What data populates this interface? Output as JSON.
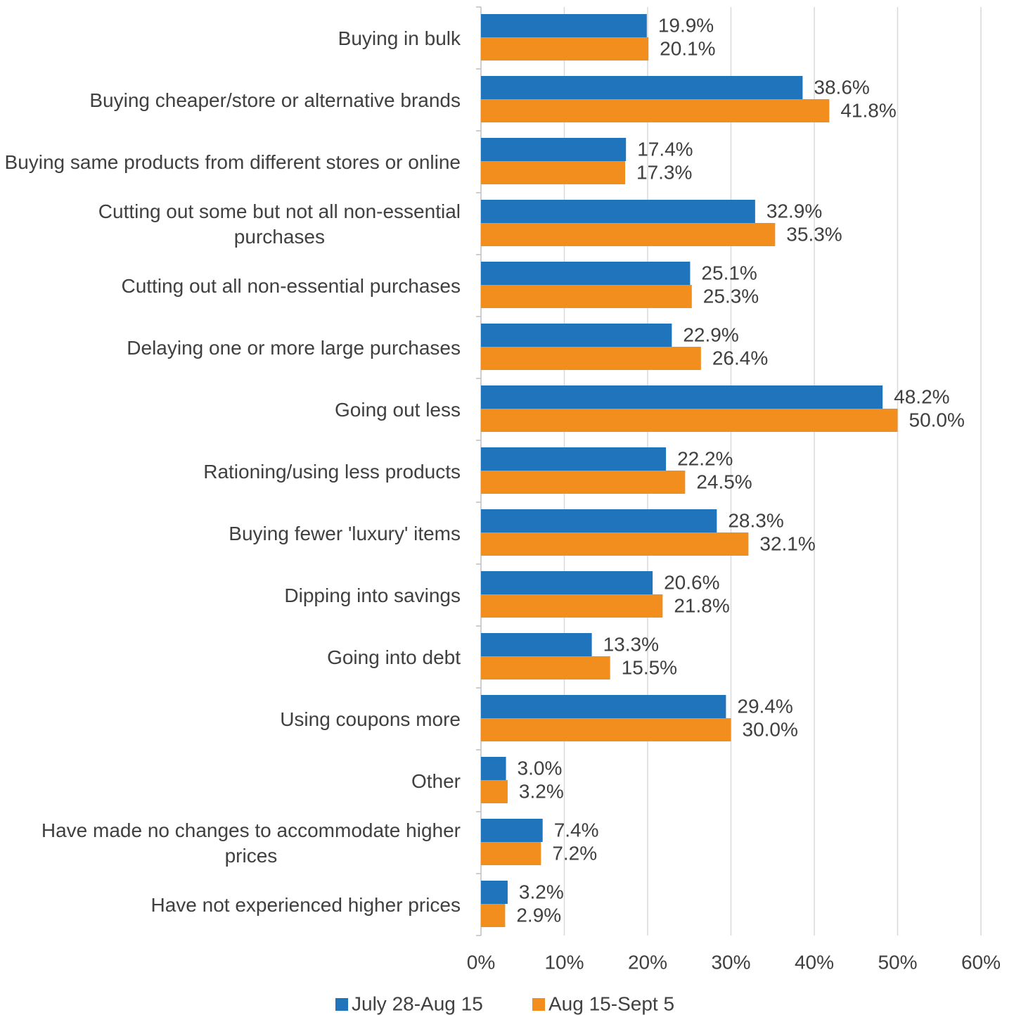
{
  "chart_data": {
    "type": "bar",
    "orientation": "horizontal",
    "categories": [
      "Buying in bulk",
      "Buying cheaper/store or alternative brands",
      "Buying same products from different stores or online",
      "Cutting out some but not all non-essential purchases",
      "Cutting out all non-essential purchases",
      "Delaying one or more large purchases",
      "Going out less",
      "Rationing/using less products",
      "Buying fewer 'luxury' items",
      "Dipping into savings",
      "Going into debt",
      "Using coupons more",
      "Other",
      "Have made no changes to accommodate higher prices",
      "Have not experienced higher prices"
    ],
    "series": [
      {
        "name": "July 28-Aug 15",
        "color": "#1f74bc",
        "values": [
          19.9,
          38.6,
          17.4,
          32.9,
          25.1,
          22.9,
          48.2,
          22.2,
          28.3,
          20.6,
          13.3,
          29.4,
          3.0,
          7.4,
          3.2
        ],
        "value_labels": [
          "19.9%",
          "38.6%",
          "17.4%",
          "32.9%",
          "25.1%",
          "22.9%",
          "48.2%",
          "22.2%",
          "28.3%",
          "20.6%",
          "13.3%",
          "29.4%",
          "3.0%",
          "7.4%",
          "3.2%"
        ]
      },
      {
        "name": "Aug 15-Sept 5",
        "color": "#f28e1e",
        "values": [
          20.1,
          41.8,
          17.3,
          35.3,
          25.3,
          26.4,
          50.0,
          24.5,
          32.1,
          21.8,
          15.5,
          30.0,
          3.2,
          7.2,
          2.9
        ],
        "value_labels": [
          "20.1%",
          "41.8%",
          "17.3%",
          "35.3%",
          "25.3%",
          "26.4%",
          "50.0%",
          "24.5%",
          "32.1%",
          "21.8%",
          "15.5%",
          "30.0%",
          "3.2%",
          "7.2%",
          "2.9%"
        ]
      }
    ],
    "xlim": [
      0,
      60
    ],
    "xticks": [
      {
        "value": 0,
        "label": "0%"
      },
      {
        "value": 10,
        "label": "10%"
      },
      {
        "value": 20,
        "label": "20%"
      },
      {
        "value": 30,
        "label": "30%"
      },
      {
        "value": 40,
        "label": "40%"
      },
      {
        "value": 50,
        "label": "50%"
      },
      {
        "value": 60,
        "label": "60%"
      }
    ],
    "grid": true,
    "legend": "bottom"
  }
}
